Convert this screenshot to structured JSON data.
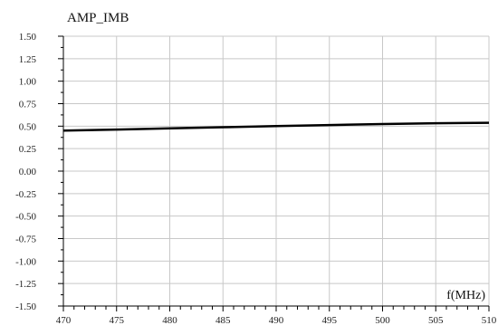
{
  "chart_data": {
    "type": "line",
    "title": "AMP_IMB",
    "xlabel": "f(MHz)",
    "ylabel": "",
    "xlim": [
      470,
      510
    ],
    "ylim": [
      -1.5,
      1.5
    ],
    "x_ticks": [
      470,
      475,
      480,
      485,
      490,
      495,
      500,
      505,
      510
    ],
    "y_ticks": [
      "1.50",
      "1.25",
      "1.00",
      "0.75",
      "0.50",
      "0.25",
      "0.00",
      "-0.25",
      "-0.50",
      "-0.75",
      "-1.00",
      "-1.25",
      "-1.50"
    ],
    "grid": true,
    "series": [
      {
        "color": "#000000",
        "x": [
          470,
          475,
          480,
          485,
          490,
          495,
          500,
          505,
          510
        ],
        "y": [
          0.45,
          0.462,
          0.475,
          0.488,
          0.5,
          0.512,
          0.523,
          0.533,
          0.538
        ]
      }
    ]
  }
}
